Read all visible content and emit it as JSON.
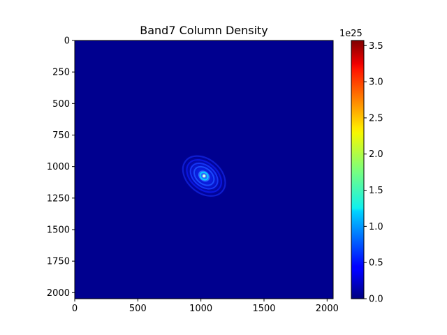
{
  "chart_data": {
    "type": "heatmap",
    "title": "Band7 Column Density",
    "xlabel": "",
    "ylabel": "",
    "x_ticks": [
      0,
      500,
      1000,
      1500,
      2000
    ],
    "y_ticks": [
      0,
      250,
      500,
      750,
      1000,
      1250,
      1500,
      1750,
      2000
    ],
    "xlim": [
      0,
      2048
    ],
    "ylim": [
      2048,
      0
    ],
    "colormap": "jet",
    "colorbar": {
      "exponent_label": "1e25",
      "ticks": [
        0.0,
        0.5,
        1.0,
        1.5,
        2.0,
        2.5,
        3.0,
        3.5
      ],
      "tick_labels": [
        "0.0",
        "0.5",
        "1.0",
        "1.5",
        "2.0",
        "2.5",
        "3.0",
        "3.5"
      ],
      "range": [
        0.0,
        3.57
      ]
    },
    "peak": {
      "x": 1025,
      "y": 1075,
      "value": 3.57
    },
    "background_value": 0.0,
    "grid": false
  }
}
